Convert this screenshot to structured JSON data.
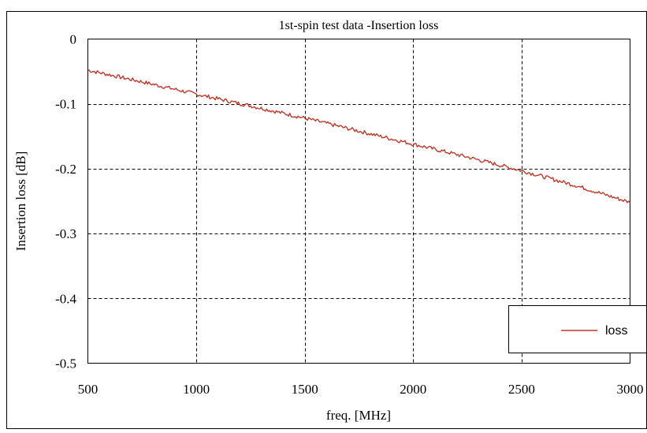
{
  "chart_data": {
    "type": "line",
    "title": "1st-spin test data -Insertion loss",
    "xlabel": "freq. [MHz]",
    "ylabel": "Insertion loss [dB]",
    "xlim": [
      500,
      3000
    ],
    "ylim": [
      -0.5,
      0
    ],
    "x_ticks": [
      500,
      1000,
      1500,
      2000,
      2500,
      3000
    ],
    "y_ticks": [
      0,
      -0.1,
      -0.2,
      -0.3,
      -0.4,
      -0.5
    ],
    "x_tick_labels": [
      "500",
      "1000",
      "1500",
      "2000",
      "2500",
      "3000"
    ],
    "y_tick_labels": [
      "0",
      "-0.1",
      "-0.2",
      "-0.3",
      "-0.4",
      "-0.5"
    ],
    "grid": true,
    "legend_position": "bottom-right",
    "series": [
      {
        "name": "loss",
        "color": "#c0392b",
        "x": [
          500,
          750,
          1000,
          1250,
          1500,
          1750,
          2000,
          2250,
          2500,
          2750,
          3000
        ],
        "values": [
          -0.048,
          -0.066,
          -0.085,
          -0.103,
          -0.122,
          -0.142,
          -0.162,
          -0.182,
          -0.203,
          -0.226,
          -0.252
        ]
      }
    ]
  }
}
